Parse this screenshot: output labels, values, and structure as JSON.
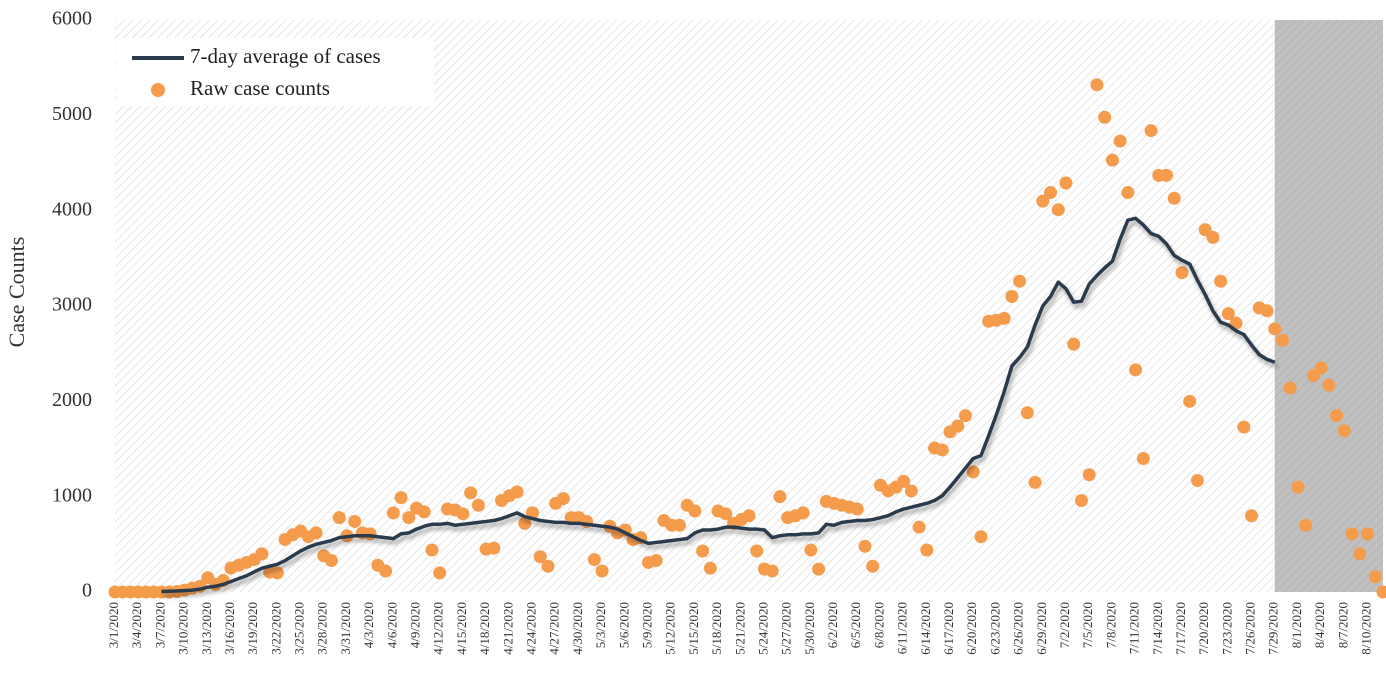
{
  "chart_data": {
    "type": "line-scatter",
    "y_label": "Case Counts",
    "categories": [
      "3/1/2020",
      null,
      null,
      "3/4/2020",
      null,
      null,
      "3/7/2020",
      null,
      null,
      "3/10/2020",
      null,
      null,
      "3/13/2020",
      null,
      null,
      "3/16/2020",
      null,
      null,
      "3/19/2020",
      null,
      null,
      "3/22/2020",
      null,
      null,
      "3/25/2020",
      null,
      null,
      "3/28/2020",
      null,
      null,
      "3/31/2020",
      null,
      null,
      "4/3/2020",
      null,
      null,
      "4/6/2020",
      null,
      null,
      "4/9/2020",
      null,
      null,
      "4/12/2020",
      null,
      null,
      "4/15/2020",
      null,
      null,
      "4/18/2020",
      null,
      null,
      "4/21/2020",
      null,
      null,
      "4/24/2020",
      null,
      null,
      "4/27/2020",
      null,
      null,
      "4/30/2020",
      null,
      null,
      "5/3/2020",
      null,
      null,
      "5/6/2020",
      null,
      null,
      "5/9/2020",
      null,
      null,
      "5/12/2020",
      null,
      null,
      "5/15/2020",
      null,
      null,
      "5/18/2020",
      null,
      null,
      "5/21/2020",
      null,
      null,
      "5/24/2020",
      null,
      null,
      "5/27/2020",
      null,
      null,
      "5/30/2020",
      null,
      null,
      "6/2/2020",
      null,
      null,
      "6/5/2020",
      null,
      null,
      "6/8/2020",
      null,
      null,
      "6/11/2020",
      null,
      null,
      "6/14/2020",
      null,
      null,
      "6/17/2020",
      null,
      null,
      "6/20/2020",
      null,
      null,
      "6/23/2020",
      null,
      null,
      "6/26/2020",
      null,
      null,
      "6/29/2020",
      null,
      null,
      "7/2/2020",
      null,
      null,
      "7/5/2020",
      null,
      null,
      "7/8/2020",
      null,
      null,
      "7/11/2020",
      null,
      null,
      "7/14/2020",
      null,
      null,
      "7/17/2020",
      null,
      null,
      "7/20/2020",
      null,
      null,
      "7/23/2020",
      null,
      null,
      "7/26/2020",
      null,
      null,
      "7/29/2020",
      null,
      null,
      "8/1/2020",
      null,
      null,
      "8/4/2020",
      null,
      null,
      "8/7/2020",
      null,
      null,
      "8/10/2020",
      null,
      null
    ],
    "series": [
      {
        "name": "7-day average of cases",
        "kind": "line",
        "color": "#2c3a4d",
        "values": [
          null,
          null,
          null,
          null,
          null,
          null,
          5,
          8,
          10,
          15,
          20,
          30,
          50,
          60,
          80,
          110,
          140,
          170,
          210,
          250,
          270,
          290,
          330,
          380,
          430,
          470,
          500,
          520,
          540,
          570,
          580,
          590,
          590,
          590,
          580,
          570,
          560,
          610,
          620,
          660,
          690,
          710,
          710,
          720,
          700,
          710,
          720,
          730,
          740,
          750,
          770,
          800,
          830,
          790,
          770,
          750,
          740,
          730,
          730,
          720,
          720,
          710,
          700,
          690,
          680,
          660,
          620,
          580,
          540,
          510,
          520,
          530,
          540,
          550,
          560,
          620,
          650,
          650,
          660,
          680,
          680,
          670,
          660,
          660,
          650,
          570,
          590,
          600,
          600,
          610,
          610,
          620,
          710,
          700,
          730,
          740,
          750,
          750,
          760,
          780,
          800,
          840,
          870,
          890,
          910,
          930,
          960,
          1010,
          1100,
          1200,
          1300,
          1400,
          1430,
          1640,
          1860,
          2100,
          2370,
          2460,
          2570,
          2800,
          3000,
          3100,
          3250,
          3180,
          3040,
          3050,
          3230,
          3320,
          3400,
          3470,
          3700,
          3900,
          3920,
          3850,
          3760,
          3730,
          3650,
          3530,
          3480,
          3440,
          3270,
          3120,
          2950,
          2830,
          2800,
          2740,
          2700,
          2590,
          2490,
          2440,
          2410,
          null,
          null,
          null,
          null,
          null,
          null,
          null,
          null,
          null,
          null,
          null,
          null,
          null,
          null
        ]
      },
      {
        "name": "Raw case counts",
        "kind": "scatter",
        "color": "#f59c4c",
        "values": [
          0,
          0,
          0,
          0,
          0,
          0,
          0,
          0,
          5,
          20,
          40,
          60,
          150,
          80,
          120,
          250,
          280,
          310,
          340,
          400,
          210,
          200,
          550,
          600,
          640,
          580,
          620,
          380,
          330,
          780,
          590,
          740,
          620,
          610,
          280,
          220,
          830,
          990,
          780,
          880,
          840,
          440,
          200,
          870,
          860,
          820,
          1040,
          910,
          450,
          460,
          960,
          1010,
          1050,
          720,
          830,
          370,
          270,
          930,
          980,
          780,
          780,
          740,
          340,
          220,
          690,
          620,
          650,
          550,
          570,
          310,
          330,
          750,
          700,
          700,
          910,
          850,
          430,
          250,
          850,
          820,
          720,
          760,
          800,
          430,
          240,
          220,
          1000,
          780,
          800,
          830,
          440,
          240,
          950,
          930,
          910,
          890,
          870,
          480,
          270,
          1120,
          1060,
          1100,
          1160,
          1060,
          680,
          440,
          1510,
          1490,
          1680,
          1740,
          1850,
          1260,
          580,
          2840,
          2850,
          2870,
          3100,
          3260,
          1880,
          1150,
          4100,
          4190,
          4010,
          4290,
          2600,
          960,
          1230,
          5320,
          4980,
          4530,
          4730,
          4190,
          2330,
          1400,
          4840,
          4370,
          4370,
          4130,
          3350,
          2000,
          1170,
          3800,
          3720,
          3260,
          2920,
          2820,
          1730,
          800,
          2980,
          2950,
          2760,
          2640,
          2140,
          1100,
          700,
          2270,
          2350,
          2170,
          1850,
          1690,
          610,
          400,
          610,
          160,
          0
        ]
      }
    ],
    "ylim": [
      0,
      6000
    ],
    "yticks": [
      0,
      1000,
      2000,
      3000,
      4000,
      5000,
      6000
    ],
    "grid": false,
    "legend": "upper left",
    "shade_from": "7/29/2020"
  }
}
